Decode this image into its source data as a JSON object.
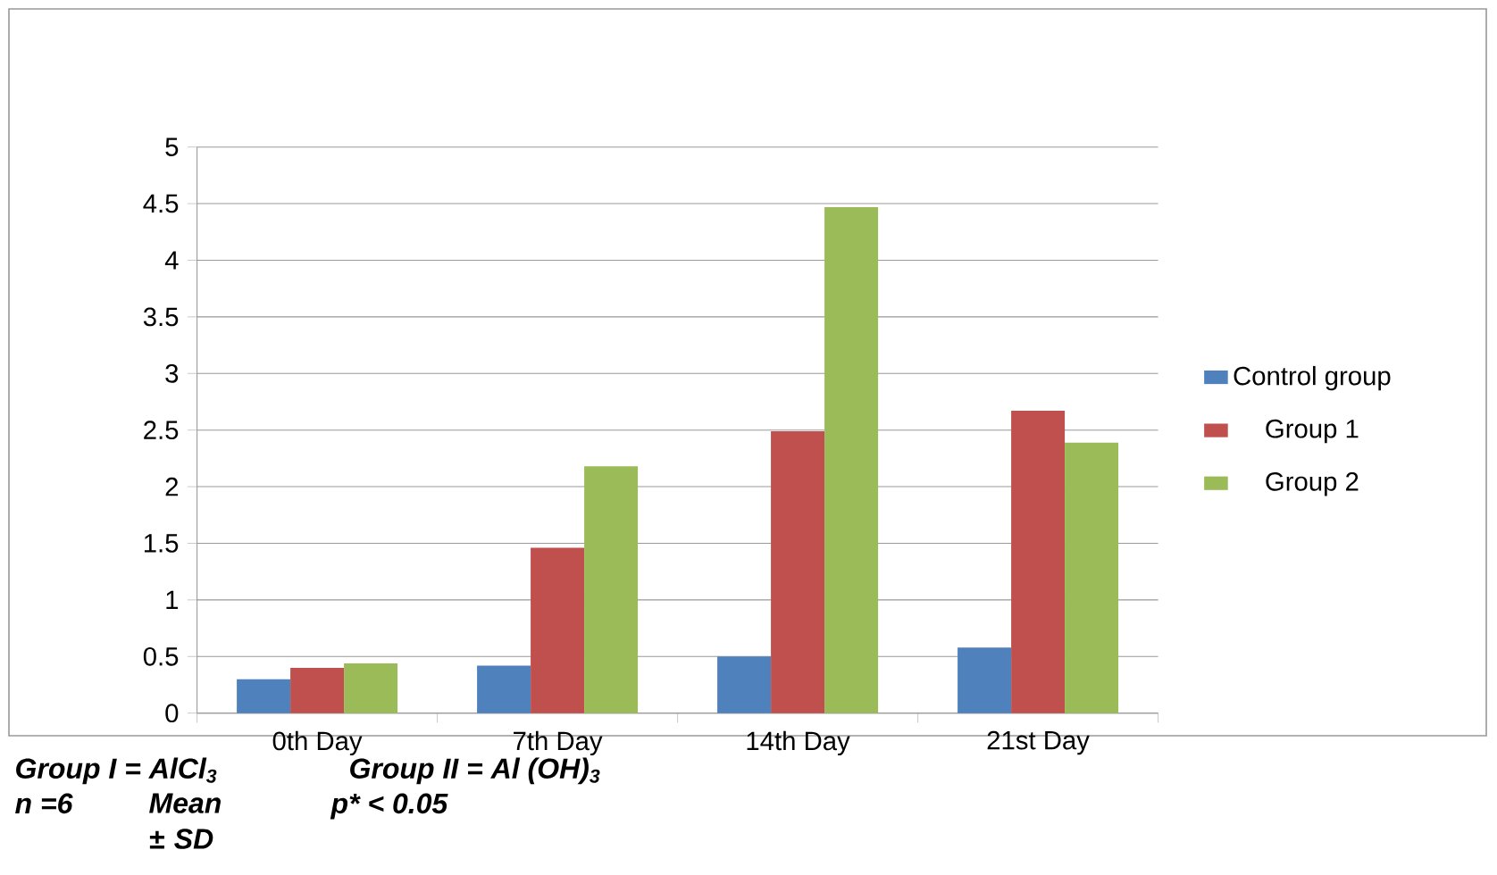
{
  "chart_data": {
    "type": "bar",
    "categories": [
      "0th Day",
      "7th Day",
      "14th Day",
      "21st Day"
    ],
    "series": [
      {
        "name": "Control group",
        "color": "#4f81bd",
        "values": [
          0.3,
          0.42,
          0.5,
          0.58
        ]
      },
      {
        "name": "Group 1",
        "color": "#c0504d",
        "values": [
          0.4,
          1.46,
          2.49,
          2.67
        ]
      },
      {
        "name": "Group 2",
        "color": "#9bbb59",
        "values": [
          0.44,
          2.18,
          4.47,
          2.39
        ]
      }
    ],
    "ylim": [
      0,
      5
    ],
    "yticks": [
      0,
      0.5,
      1,
      1.5,
      2,
      2.5,
      3,
      3.5,
      4,
      4.5,
      5
    ],
    "grid": "y",
    "legend": "right",
    "annotations": [
      "Group I = AlCl$_{3}$",
      "Group II = Al (OH)$_{3}$",
      "n =6",
      "Mean ± SD",
      "p* < 0.05"
    ]
  }
}
